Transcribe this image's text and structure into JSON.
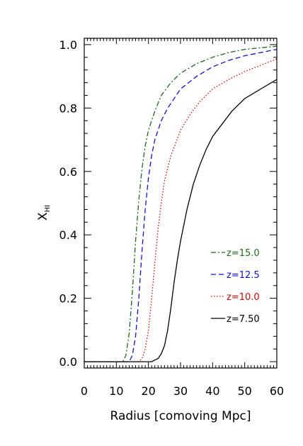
{
  "chart_data": {
    "type": "line",
    "xlabel": "Radius [comoving Mpc]",
    "ylabel": "X",
    "ylabel_subscript": "HI",
    "xlim": [
      0,
      60
    ],
    "ylim": [
      -0.02,
      1.02
    ],
    "xticks": [
      0,
      10,
      20,
      30,
      40,
      50,
      60
    ],
    "yticks": [
      0.0,
      0.2,
      0.4,
      0.6,
      0.8,
      1.0
    ],
    "xtick_labels": [
      "0",
      "10",
      "20",
      "30",
      "40",
      "50",
      "60"
    ],
    "ytick_labels": [
      "0.0",
      "0.2",
      "0.4",
      "0.6",
      "0.8",
      "1.0"
    ],
    "grid": false,
    "legend_position": "right, lower-middle",
    "series": [
      {
        "name": "z=15.0",
        "color": "#1a6b1a",
        "dash": "dash-dot",
        "x": [
          0,
          12,
          13,
          14,
          15,
          16,
          17,
          18,
          19,
          20,
          22,
          24,
          27,
          30,
          35,
          40,
          45,
          50,
          55,
          60
        ],
        "y": [
          0,
          0,
          0.02,
          0.09,
          0.22,
          0.38,
          0.51,
          0.61,
          0.68,
          0.73,
          0.79,
          0.84,
          0.88,
          0.91,
          0.94,
          0.96,
          0.975,
          0.985,
          0.99,
          0.995
        ]
      },
      {
        "name": "z=12.5",
        "color": "#1010e0",
        "dash": "dashed",
        "x": [
          0,
          14,
          15,
          16,
          17,
          18,
          19,
          20,
          21,
          22,
          24,
          26,
          28,
          30,
          35,
          40,
          45,
          50,
          55,
          60
        ],
        "y": [
          0,
          0,
          0.02,
          0.08,
          0.2,
          0.35,
          0.48,
          0.58,
          0.65,
          0.7,
          0.76,
          0.8,
          0.83,
          0.86,
          0.9,
          0.93,
          0.95,
          0.965,
          0.975,
          0.985
        ]
      },
      {
        "name": "z=10.0",
        "color": "#e00000",
        "dash": "dotted",
        "x": [
          0,
          17,
          18,
          19,
          20,
          21,
          22,
          23,
          24,
          25,
          27,
          30,
          33,
          36,
          40,
          45,
          50,
          55,
          60
        ],
        "y": [
          0,
          0,
          0.01,
          0.04,
          0.1,
          0.2,
          0.31,
          0.42,
          0.5,
          0.57,
          0.65,
          0.73,
          0.78,
          0.82,
          0.86,
          0.89,
          0.915,
          0.935,
          0.955
        ]
      },
      {
        "name": "z=7.50",
        "color": "#000000",
        "dash": "solid",
        "x": [
          0,
          21,
          22,
          23,
          24,
          25,
          26,
          27,
          28,
          29,
          30,
          32,
          34,
          36,
          38,
          40,
          43,
          46,
          50,
          55,
          60
        ],
        "y": [
          0,
          0,
          0.005,
          0.01,
          0.025,
          0.05,
          0.1,
          0.17,
          0.25,
          0.32,
          0.38,
          0.48,
          0.56,
          0.62,
          0.67,
          0.71,
          0.75,
          0.79,
          0.83,
          0.86,
          0.89
        ]
      }
    ]
  }
}
